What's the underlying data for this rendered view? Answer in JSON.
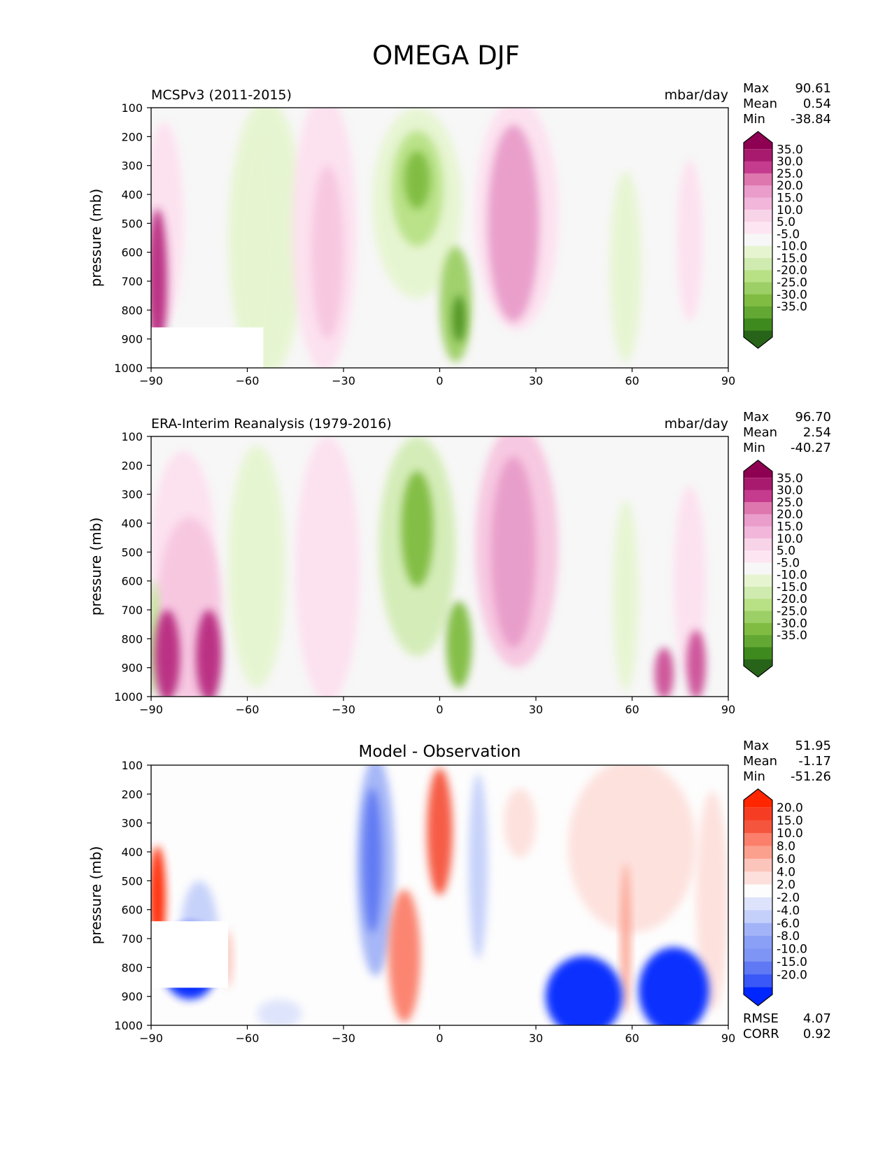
{
  "figure_title": "OMEGA DJF",
  "units_label": "mbar/day",
  "stats_labels": {
    "max": "Max",
    "mean": "Mean",
    "min": "Min",
    "rmse": "RMSE",
    "corr": "CORR"
  },
  "colors": {
    "panel_background": "#f7f7f7",
    "diff_background": "#fdfdfd",
    "pos_seq": [
      "#fde0ef",
      "#f7c6e0",
      "#f1b6da",
      "#e89cc9",
      "#de77ae",
      "#cc4f97",
      "#b82a80",
      "#8e0152"
    ],
    "neg_seq": [
      "#e6f5d0",
      "#d3ecb5",
      "#b8e186",
      "#9ccf65",
      "#7fbc41",
      "#62a832",
      "#4d9221",
      "#276419"
    ],
    "diff_pos_seq": [
      "#fde0dc",
      "#fcc5bc",
      "#fca08e",
      "#fb7f6a",
      "#f6553d",
      "#ff2600"
    ],
    "diff_neg_seq": [
      "#dde3fb",
      "#c5d0fa",
      "#a2b4f7",
      "#7f95f5",
      "#5f78f3",
      "#0026ff"
    ]
  },
  "colorbar_main": {
    "levels": [
      "35.0",
      "30.0",
      "25.0",
      "20.0",
      "15.0",
      "10.0",
      "5.0",
      "-5.0",
      "-10.0",
      "-15.0",
      "-20.0",
      "-25.0",
      "-30.0",
      "-35.0"
    ],
    "colors": [
      "#8e0152",
      "#a81a6e",
      "#c53b8d",
      "#de77ae",
      "#ea9dca",
      "#f1b6da",
      "#f8d4e8",
      "#fde6f1",
      "#f7f7f7",
      "#e6f5d0",
      "#cfebb0",
      "#b8e186",
      "#9ccf65",
      "#7fbc41",
      "#62a832",
      "#3f8a1e",
      "#276419"
    ]
  },
  "colorbar_diff": {
    "levels": [
      "20.0",
      "15.0",
      "10.0",
      "8.0",
      "6.0",
      "4.0",
      "2.0",
      "-2.0",
      "-4.0",
      "-6.0",
      "-8.0",
      "-10.0",
      "-15.0",
      "-20.0"
    ],
    "colors": [
      "#ff2600",
      "#f63d24",
      "#f6553d",
      "#fb7f6a",
      "#fca08e",
      "#fcc5bc",
      "#fde0dc",
      "#fdfdfd",
      "#dde3fb",
      "#c5d0fa",
      "#a2b4f7",
      "#8aa0f6",
      "#7f95f5",
      "#5f78f3",
      "#3a57f7",
      "#0026ff"
    ]
  },
  "chart_data": [
    {
      "type": "heatmap",
      "title": "MCSPv3 (2011-2015)",
      "units": "mbar/day",
      "xlabel": "",
      "ylabel": "pressure (mb)",
      "xlim": [
        -90,
        90
      ],
      "ylim": [
        1000,
        100
      ],
      "x_ticks": [
        "−90",
        "−60",
        "−30",
        "0",
        "30",
        "60",
        "90"
      ],
      "y_ticks": [
        "100",
        "200",
        "300",
        "400",
        "500",
        "600",
        "700",
        "800",
        "900",
        "1000"
      ],
      "stats": {
        "max": "90.61",
        "mean": "0.54",
        "min": "-38.84"
      },
      "features": [
        {
          "kind": "pos",
          "lat": -88,
          "p": 700,
          "dlat": 3,
          "dp": 250,
          "value": 40
        },
        {
          "kind": "pos",
          "lat": -86,
          "p": 500,
          "dlat": 6,
          "dp": 350,
          "value": 6
        },
        {
          "kind": "neg",
          "lat": -57,
          "p": 600,
          "dlat": 6,
          "dp": 380,
          "value": -10
        },
        {
          "kind": "neg",
          "lat": -54,
          "p": 550,
          "dlat": 12,
          "dp": 480,
          "value": -6
        },
        {
          "kind": "pos",
          "lat": -36,
          "p": 530,
          "dlat": 10,
          "dp": 480,
          "value": 7
        },
        {
          "kind": "pos",
          "lat": -35,
          "p": 600,
          "dlat": 5,
          "dp": 300,
          "value": 11
        },
        {
          "kind": "neg",
          "lat": -7,
          "p": 430,
          "dlat": 14,
          "dp": 330,
          "value": -8
        },
        {
          "kind": "neg",
          "lat": -7,
          "p": 380,
          "dlat": 8,
          "dp": 200,
          "value": -20
        },
        {
          "kind": "neg",
          "lat": -7,
          "p": 350,
          "dlat": 4,
          "dp": 100,
          "value": -30
        },
        {
          "kind": "neg",
          "lat": 5,
          "p": 780,
          "dlat": 5,
          "dp": 200,
          "value": -25
        },
        {
          "kind": "neg",
          "lat": 6,
          "p": 830,
          "dlat": 2,
          "dp": 80,
          "value": -38
        },
        {
          "kind": "pos",
          "lat": 24,
          "p": 470,
          "dlat": 13,
          "dp": 400,
          "value": 9
        },
        {
          "kind": "pos",
          "lat": 23,
          "p": 500,
          "dlat": 8,
          "dp": 340,
          "value": 22
        },
        {
          "kind": "neg",
          "lat": 58,
          "p": 650,
          "dlat": 5,
          "dp": 330,
          "value": -7
        },
        {
          "kind": "pos",
          "lat": 78,
          "p": 560,
          "dlat": 4,
          "dp": 280,
          "value": 6
        }
      ],
      "mask": {
        "lat_from": -90,
        "lat_to": -55,
        "p_from": 860,
        "p_to": 1000
      }
    },
    {
      "type": "heatmap",
      "title": "ERA-Interim Reanalysis (1979-2016)",
      "units": "mbar/day",
      "xlabel": "",
      "ylabel": "pressure (mb)",
      "xlim": [
        -90,
        90
      ],
      "ylim": [
        1000,
        100
      ],
      "x_ticks": [
        "−90",
        "−60",
        "−30",
        "0",
        "30",
        "60",
        "90"
      ],
      "y_ticks": [
        "100",
        "200",
        "300",
        "400",
        "500",
        "600",
        "700",
        "800",
        "900",
        "1000"
      ],
      "stats": {
        "max": "96.70",
        "mean": "2.54",
        "min": "-40.27"
      },
      "features": [
        {
          "kind": "neg",
          "lat": -89,
          "p": 800,
          "dlat": 1.5,
          "dp": 200,
          "value": -20
        },
        {
          "kind": "pos",
          "lat": -85,
          "p": 860,
          "dlat": 4,
          "dp": 160,
          "value": 40
        },
        {
          "kind": "pos",
          "lat": -72,
          "p": 860,
          "dlat": 4,
          "dp": 160,
          "value": 40
        },
        {
          "kind": "pos",
          "lat": -78,
          "p": 700,
          "dlat": 10,
          "dp": 320,
          "value": 12
        },
        {
          "kind": "pos",
          "lat": -80,
          "p": 500,
          "dlat": 10,
          "dp": 350,
          "value": 5
        },
        {
          "kind": "neg",
          "lat": -57,
          "p": 550,
          "dlat": 9,
          "dp": 420,
          "value": -8
        },
        {
          "kind": "pos",
          "lat": -35,
          "p": 560,
          "dlat": 10,
          "dp": 460,
          "value": 7
        },
        {
          "kind": "neg",
          "lat": -7,
          "p": 480,
          "dlat": 12,
          "dp": 380,
          "value": -15
        },
        {
          "kind": "neg",
          "lat": -7,
          "p": 420,
          "dlat": 5,
          "dp": 200,
          "value": -30
        },
        {
          "kind": "neg",
          "lat": 6,
          "p": 820,
          "dlat": 4,
          "dp": 150,
          "value": -30
        },
        {
          "kind": "pos",
          "lat": 24,
          "p": 480,
          "dlat": 13,
          "dp": 420,
          "value": 12
        },
        {
          "kind": "pos",
          "lat": 23,
          "p": 500,
          "dlat": 7,
          "dp": 330,
          "value": 22
        },
        {
          "kind": "neg",
          "lat": 58,
          "p": 650,
          "dlat": 4,
          "dp": 330,
          "value": -10
        },
        {
          "kind": "pos",
          "lat": 70,
          "p": 920,
          "dlat": 3,
          "dp": 90,
          "value": 35
        },
        {
          "kind": "pos",
          "lat": 80,
          "p": 890,
          "dlat": 3,
          "dp": 120,
          "value": 35
        },
        {
          "kind": "pos",
          "lat": 78,
          "p": 600,
          "dlat": 5,
          "dp": 330,
          "value": 6
        }
      ],
      "mask": null
    },
    {
      "type": "heatmap",
      "title": "Model - Observation",
      "units": "",
      "xlabel": "",
      "ylabel": "pressure (mb)",
      "xlim": [
        -90,
        90
      ],
      "ylim": [
        1000,
        100
      ],
      "x_ticks": [
        "−90",
        "−60",
        "−30",
        "0",
        "30",
        "60",
        "90"
      ],
      "y_ticks": [
        "100",
        "200",
        "300",
        "400",
        "500",
        "600",
        "700",
        "800",
        "900",
        "1000"
      ],
      "stats": {
        "max": "51.95",
        "mean": "-1.17",
        "min": "-51.26",
        "rmse": "4.07",
        "corr": "0.92"
      },
      "features": [
        {
          "kind": "pos",
          "lat": -88,
          "p": 560,
          "dlat": 2.5,
          "dp": 180,
          "value": 22
        },
        {
          "kind": "neg",
          "lat": -78,
          "p": 780,
          "dlat": 9,
          "dp": 130,
          "value": -18
        },
        {
          "kind": "neg",
          "lat": -75,
          "p": 700,
          "dlat": 6,
          "dp": 200,
          "value": -5
        },
        {
          "kind": "pos",
          "lat": -66,
          "p": 770,
          "dlat": 1.5,
          "dp": 100,
          "value": 6
        },
        {
          "kind": "neg",
          "lat": -50,
          "p": 960,
          "dlat": 7,
          "dp": 50,
          "value": -4
        },
        {
          "kind": "neg",
          "lat": -20,
          "p": 450,
          "dlat": 6,
          "dp": 380,
          "value": -7
        },
        {
          "kind": "neg",
          "lat": -21,
          "p": 430,
          "dlat": 3,
          "dp": 250,
          "value": -12
        },
        {
          "kind": "pos",
          "lat": -11,
          "p": 760,
          "dlat": 5,
          "dp": 230,
          "value": 9
        },
        {
          "kind": "pos",
          "lat": 0,
          "p": 330,
          "dlat": 4,
          "dp": 220,
          "value": 11
        },
        {
          "kind": "neg",
          "lat": 12,
          "p": 450,
          "dlat": 3,
          "dp": 320,
          "value": -6
        },
        {
          "kind": "pos",
          "lat": 25,
          "p": 300,
          "dlat": 5,
          "dp": 120,
          "value": 3
        },
        {
          "kind": "neg",
          "lat": 45,
          "p": 900,
          "dlat": 12,
          "dp": 140,
          "value": -18
        },
        {
          "kind": "neg",
          "lat": 73,
          "p": 880,
          "dlat": 11,
          "dp": 150,
          "value": -20
        },
        {
          "kind": "pos",
          "lat": 58,
          "p": 700,
          "dlat": 1.5,
          "dp": 260,
          "value": 8
        },
        {
          "kind": "pos",
          "lat": 60,
          "p": 380,
          "dlat": 20,
          "dp": 300,
          "value": 3
        },
        {
          "kind": "pos",
          "lat": 85,
          "p": 570,
          "dlat": 5,
          "dp": 380,
          "value": 4
        }
      ],
      "mask": {
        "lat_from": -90,
        "lat_to": -66,
        "p_from": 640,
        "p_to": 870,
        "partial": true
      }
    }
  ]
}
